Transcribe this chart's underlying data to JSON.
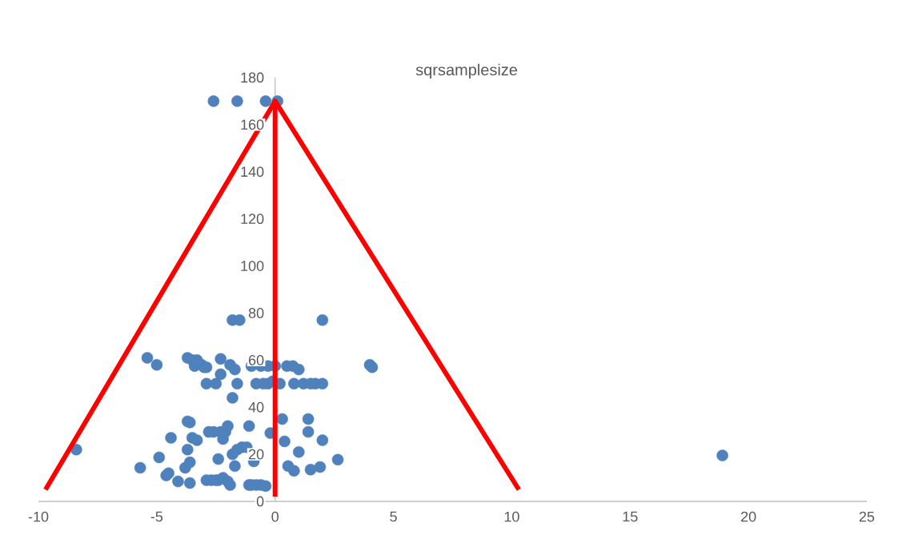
{
  "chart_data": {
    "type": "scatter",
    "title": "sqrsamplesize",
    "xlim": [
      -10,
      25
    ],
    "xticks": [
      -10,
      -5,
      0,
      5,
      10,
      15,
      20,
      25
    ],
    "ylim": [
      0,
      180
    ],
    "yticks": [
      0,
      20,
      40,
      60,
      80,
      100,
      120,
      140,
      160,
      180
    ],
    "grid": false,
    "series": [
      {
        "type": "scatter",
        "color": "#4f81bd",
        "marker": "circle",
        "x": [
          -2.6,
          -1.6,
          -0.4,
          0.1,
          -1.8,
          -1.5,
          2.0,
          -5.4,
          -5.0,
          -3.7,
          -3.5,
          -3.1,
          -3.4,
          -3.3,
          -3.0,
          -2.3,
          -2.9,
          -1.9,
          -1.7,
          -2.3,
          -2.9,
          -2.5,
          -1.6,
          -1.8,
          -1.0,
          -0.6,
          -0.3,
          0.0,
          -0.8,
          -0.5,
          -0.3,
          -0.1,
          0.2,
          0.5,
          0.75,
          1.0,
          0.8,
          1.2,
          1.5,
          1.7,
          2.0,
          4.0,
          4.1,
          0.3,
          1.4,
          1.4,
          2.0,
          0.4,
          1.0,
          0.55,
          0.8,
          1.5,
          1.9,
          2.65,
          -0.2,
          -8.4,
          -5.7,
          -4.9,
          -4.4,
          -3.7,
          -3.6,
          -3.7,
          -3.8,
          -4.6,
          -4.5,
          -4.1,
          -3.6,
          -3.5,
          -3.3,
          -3.6,
          -2.8,
          -2.6,
          -2.3,
          -2.1,
          -2.2,
          -2.0,
          -1.1,
          -2.4,
          -1.8,
          -1.6,
          -1.4,
          -1.2,
          -1.7,
          -0.9,
          -2.2,
          -2.0,
          -1.9,
          -2.9,
          -2.7,
          -2.5,
          -2.4,
          -1.1,
          -1.0,
          -0.8,
          -0.6,
          -0.4,
          18.9
        ],
        "values": [
          170,
          170,
          170,
          170,
          77,
          77,
          77,
          61,
          58,
          61,
          60,
          58,
          57.5,
          60,
          57,
          60.5,
          57,
          58,
          56,
          54,
          50,
          50,
          50,
          44,
          57.5,
          57.5,
          57.5,
          57.5,
          50,
          50,
          50,
          51,
          50,
          57.5,
          57.5,
          56,
          50,
          50,
          50,
          50,
          50,
          58,
          57,
          35,
          35,
          29.5,
          26,
          25.5,
          21,
          15,
          13,
          13.5,
          14.6,
          17.7,
          29,
          22,
          14.3,
          18.7,
          27,
          34,
          33.5,
          22,
          14.3,
          11,
          12,
          8.5,
          7.8,
          27,
          26,
          16.6,
          29.5,
          29.5,
          29.5,
          29.5,
          26.5,
          32,
          32,
          18,
          20,
          22,
          23,
          23,
          15,
          17,
          10,
          8.5,
          7,
          9,
          9,
          9,
          9,
          7,
          7,
          7,
          7,
          6.5,
          19.5
        ]
      },
      {
        "type": "line",
        "color": "#ff0000",
        "marker": "none",
        "x": [
          -9.7,
          0,
          10.3
        ],
        "values": [
          5,
          170,
          5
        ]
      },
      {
        "type": "line",
        "color": "#ff0000",
        "marker": "none",
        "x": [
          0,
          0
        ],
        "values": [
          2,
          170
        ]
      }
    ]
  }
}
